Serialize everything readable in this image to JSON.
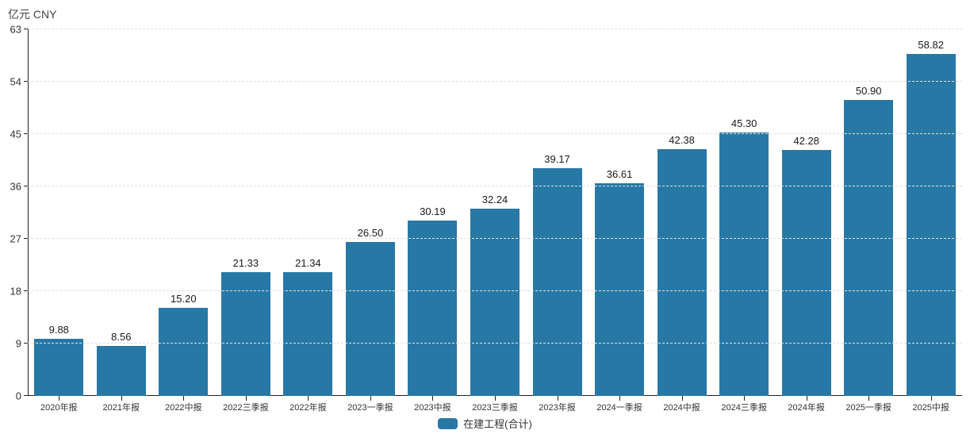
{
  "chart_data": {
    "type": "bar",
    "title": "",
    "unit_label": "亿元 CNY",
    "series_name": "在建工程(合计)",
    "categories": [
      "2020年报",
      "2021年报",
      "2022中报",
      "2022三季报",
      "2022年报",
      "2023一季报",
      "2023中报",
      "2023三季报",
      "2023年报",
      "2024一季报",
      "2024中报",
      "2024三季报",
      "2024年报",
      "2025一季报",
      "2025中报"
    ],
    "values": [
      9.88,
      8.56,
      15.2,
      21.33,
      21.34,
      26.5,
      30.19,
      32.24,
      39.17,
      36.61,
      42.38,
      45.3,
      42.28,
      50.9,
      58.82
    ],
    "value_labels": [
      "9.88",
      "8.56",
      "15.20",
      "21.33",
      "21.34",
      "26.50",
      "30.19",
      "32.24",
      "39.17",
      "36.61",
      "42.38",
      "45.30",
      "42.28",
      "50.90",
      "58.82"
    ],
    "ylim": [
      0,
      63
    ],
    "yticks": [
      0,
      9,
      18,
      27,
      36,
      45,
      54,
      63
    ],
    "xlabel": "",
    "ylabel": "",
    "grid": "horizontal dashed",
    "legend_position": "bottom-center",
    "bar_color": "#2878a6",
    "axis_color": "#222222",
    "gridline_color": "#e0e0e0",
    "label_color": "#1a1a1a"
  }
}
